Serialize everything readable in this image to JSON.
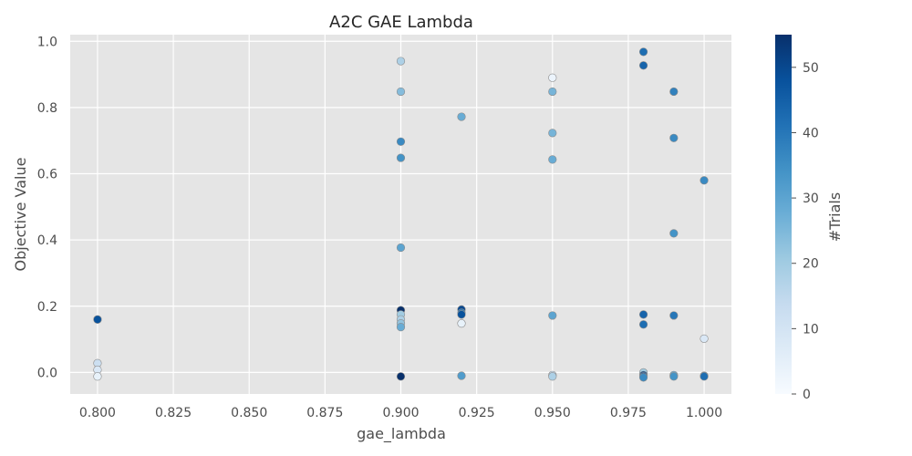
{
  "chart_data": {
    "type": "scatter",
    "title": "A2C GAE Lambda",
    "xlabel": "gae_lambda",
    "ylabel": "Objective Value",
    "xlim": [
      0.791,
      1.009
    ],
    "ylim": [
      -0.065,
      1.02
    ],
    "xticks": [
      "0.800",
      "0.825",
      "0.850",
      "0.875",
      "0.900",
      "0.925",
      "0.950",
      "0.975",
      "1.000"
    ],
    "xtick_values": [
      0.8,
      0.825,
      0.85,
      0.875,
      0.9,
      0.925,
      0.95,
      0.975,
      1.0
    ],
    "yticks": [
      "0.0",
      "0.2",
      "0.4",
      "0.6",
      "0.8",
      "1.0"
    ],
    "ytick_values": [
      0.0,
      0.2,
      0.4,
      0.6,
      0.8,
      1.0
    ],
    "grid": true,
    "colorbar": {
      "label": "#Trials",
      "min": 0,
      "max": 55,
      "ticks": [
        "0",
        "10",
        "20",
        "30",
        "40",
        "50"
      ],
      "tick_values": [
        0,
        10,
        20,
        30,
        40,
        50
      ],
      "colormap": [
        "#f7fbff",
        "#deebf7",
        "#c6dbef",
        "#9ecae1",
        "#6baed6",
        "#4292c6",
        "#2171b5",
        "#08519c",
        "#08306b"
      ]
    },
    "points": [
      {
        "x": 0.8,
        "y": 0.16,
        "c": 55
      },
      {
        "x": 0.8,
        "y": 0.16,
        "c": 48
      },
      {
        "x": 0.8,
        "y": 0.028,
        "c": 12
      },
      {
        "x": 0.8,
        "y": 0.008,
        "c": 8
      },
      {
        "x": 0.8,
        "y": -0.012,
        "c": 4
      },
      {
        "x": 0.9,
        "y": 0.94,
        "c": 18
      },
      {
        "x": 0.9,
        "y": 0.848,
        "c": 24
      },
      {
        "x": 0.9,
        "y": 0.697,
        "c": 36
      },
      {
        "x": 0.9,
        "y": 0.648,
        "c": 34
      },
      {
        "x": 0.9,
        "y": 0.377,
        "c": 30
      },
      {
        "x": 0.9,
        "y": 0.188,
        "c": 55
      },
      {
        "x": 0.9,
        "y": 0.175,
        "c": 20
      },
      {
        "x": 0.9,
        "y": 0.16,
        "c": 18
      },
      {
        "x": 0.9,
        "y": 0.148,
        "c": 22
      },
      {
        "x": 0.9,
        "y": 0.137,
        "c": 28
      },
      {
        "x": 0.9,
        "y": -0.012,
        "c": 55
      },
      {
        "x": 0.92,
        "y": 0.772,
        "c": 28
      },
      {
        "x": 0.92,
        "y": 0.19,
        "c": 50
      },
      {
        "x": 0.92,
        "y": 0.18,
        "c": 40
      },
      {
        "x": 0.92,
        "y": 0.175,
        "c": 48
      },
      {
        "x": 0.92,
        "y": 0.148,
        "c": 4
      },
      {
        "x": 0.92,
        "y": -0.01,
        "c": 32
      },
      {
        "x": 0.95,
        "y": 0.89,
        "c": 3
      },
      {
        "x": 0.95,
        "y": 0.848,
        "c": 26
      },
      {
        "x": 0.95,
        "y": 0.723,
        "c": 26
      },
      {
        "x": 0.95,
        "y": 0.643,
        "c": 28
      },
      {
        "x": 0.95,
        "y": 0.172,
        "c": 30
      },
      {
        "x": 0.95,
        "y": -0.008,
        "c": 14
      },
      {
        "x": 0.95,
        "y": -0.012,
        "c": 18
      },
      {
        "x": 0.98,
        "y": 0.968,
        "c": 42
      },
      {
        "x": 0.98,
        "y": 0.927,
        "c": 44
      },
      {
        "x": 0.98,
        "y": 0.175,
        "c": 44
      },
      {
        "x": 0.98,
        "y": 0.145,
        "c": 42
      },
      {
        "x": 0.98,
        "y": 0.0,
        "c": 20
      },
      {
        "x": 0.98,
        "y": -0.008,
        "c": 50
      },
      {
        "x": 0.98,
        "y": -0.012,
        "c": 46
      },
      {
        "x": 0.98,
        "y": -0.015,
        "c": 36
      },
      {
        "x": 0.99,
        "y": 0.848,
        "c": 38
      },
      {
        "x": 0.99,
        "y": 0.708,
        "c": 36
      },
      {
        "x": 0.99,
        "y": 0.42,
        "c": 34
      },
      {
        "x": 0.99,
        "y": 0.172,
        "c": 40
      },
      {
        "x": 0.99,
        "y": -0.008,
        "c": 28
      },
      {
        "x": 0.99,
        "y": -0.012,
        "c": 34
      },
      {
        "x": 1.0,
        "y": 0.58,
        "c": 36
      },
      {
        "x": 1.0,
        "y": 0.102,
        "c": 8
      },
      {
        "x": 1.0,
        "y": -0.01,
        "c": 40
      },
      {
        "x": 1.0,
        "y": -0.012,
        "c": 42
      }
    ]
  }
}
